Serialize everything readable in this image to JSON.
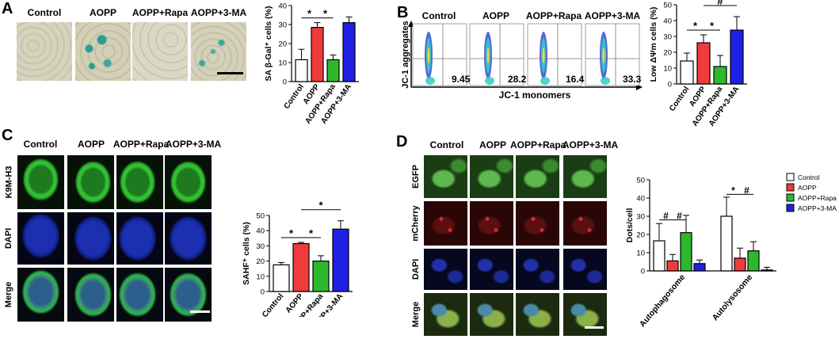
{
  "panels": {
    "A": {
      "label": "A",
      "columns": [
        "Control",
        "AOPP",
        "AOPP+Rapa",
        "AOPP+3-MA"
      ],
      "chart_data": {
        "type": "bar",
        "categories": [
          "Control",
          "AOPP",
          "AOPP+Rapa",
          "AOPP+3-MA"
        ],
        "values": [
          11.5,
          28.5,
          11.5,
          31
        ],
        "errors": [
          5.5,
          2.5,
          2.5,
          3
        ],
        "colors": [
          "#ffffff",
          "#ef3b3b",
          "#2db82d",
          "#1f1fe6"
        ],
        "ylabel": "SA β-Gal⁺ cells (%)",
        "ylim": [
          0,
          40
        ],
        "yticks": [
          "0",
          "10",
          "20",
          "30",
          "40"
        ],
        "significance": [
          {
            "from": "Control",
            "to": "AOPP",
            "mark": "*"
          },
          {
            "from": "AOPP",
            "to": "AOPP+Rapa",
            "mark": "*"
          }
        ]
      }
    },
    "B": {
      "label": "B",
      "columns": [
        "Control",
        "AOPP",
        "AOPP+Rapa",
        "AOPP+3-MA"
      ],
      "flow_values": [
        "9.45",
        "28.2",
        "16.4",
        "33.3"
      ],
      "y_axis_label": "JC-1 aggregates",
      "x_axis_label": "JC-1 monomers",
      "chart_data": {
        "type": "bar",
        "categories": [
          "Control",
          "AOPP",
          "AOPP+Rapa",
          "AOPP+3-MA"
        ],
        "values": [
          14.5,
          26,
          11,
          34
        ],
        "errors": [
          5,
          5,
          7,
          8.5
        ],
        "colors": [
          "#ffffff",
          "#ef3b3b",
          "#2db82d",
          "#1f1fe6"
        ],
        "ylabel": "Low ΔΨm cells (%)",
        "ylim": [
          0,
          50
        ],
        "yticks": [
          "0",
          "10",
          "20",
          "30",
          "40",
          "50"
        ],
        "significance": [
          {
            "from": "Control",
            "to": "AOPP",
            "mark": "*"
          },
          {
            "from": "AOPP",
            "to": "AOPP+Rapa",
            "mark": "*"
          },
          {
            "from": "AOPP",
            "to": "AOPP+3-MA",
            "mark": "#"
          }
        ]
      }
    },
    "C": {
      "label": "C",
      "columns": [
        "Control",
        "AOPP",
        "AOPP+Rapa",
        "AOPP+3-MA"
      ],
      "rows": [
        "K9M-H3",
        "DAPI",
        "Merge"
      ],
      "chart_data": {
        "type": "bar",
        "categories": [
          "Control",
          "AOPP",
          "AOPP+Rapa",
          "AOPP+3-MA"
        ],
        "values": [
          17.5,
          31.5,
          20,
          41
        ],
        "errors": [
          1.5,
          0.8,
          3.5,
          5.5
        ],
        "colors": [
          "#ffffff",
          "#ef3b3b",
          "#2db82d",
          "#1f1fe6"
        ],
        "ylabel": "SAHF⁺ cells (%)",
        "ylim": [
          0,
          50
        ],
        "yticks": [
          "0",
          "10",
          "20",
          "30",
          "40",
          "50"
        ],
        "significance": [
          {
            "from": "Control",
            "to": "AOPP",
            "mark": "*"
          },
          {
            "from": "AOPP",
            "to": "AOPP+Rapa",
            "mark": "*"
          },
          {
            "from": "AOPP",
            "to": "AOPP+3-MA",
            "mark": "*"
          }
        ]
      }
    },
    "D": {
      "label": "D",
      "columns": [
        "Control",
        "AOPP",
        "AOPP+Rapa",
        "AOPP+3-MA"
      ],
      "rows": [
        "EGFP",
        "mCherry",
        "DAPI",
        "Merge"
      ],
      "chart_data": {
        "type": "bar",
        "categories": [
          "Autophagosome",
          "Autolysosome"
        ],
        "series": [
          {
            "name": "Control",
            "values": [
              16.5,
              30
            ],
            "errors": [
              9.5,
              10.5
            ],
            "color": "#ffffff"
          },
          {
            "name": "AOPP",
            "values": [
              5.5,
              7
            ],
            "errors": [
              3.5,
              5.5
            ],
            "color": "#ef3b3b"
          },
          {
            "name": "AOPP+Rapa",
            "values": [
              21,
              11
            ],
            "errors": [
              9.5,
              5
            ],
            "color": "#2db82d"
          },
          {
            "name": "AOPP+3-MA",
            "values": [
              4,
              0.5
            ],
            "errors": [
              2,
              1.5
            ],
            "color": "#1f1fe6"
          }
        ],
        "ylabel": "Dots/cell",
        "ylim": [
          0,
          50
        ],
        "yticks": [
          "0",
          "10",
          "20",
          "30",
          "40",
          "50"
        ],
        "significance_marks": [
          "#",
          "#",
          "*",
          "#"
        ],
        "legend_position": "right"
      }
    }
  }
}
